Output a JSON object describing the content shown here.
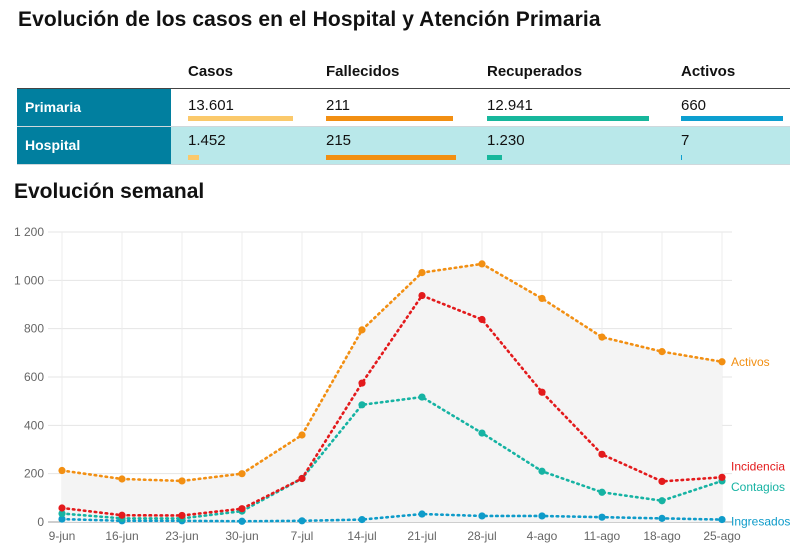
{
  "title": "Evolución de los casos en el Hospital y Atención Primaria",
  "table": {
    "headers": [
      "Casos",
      "Fallecidos",
      "Recuperados",
      "Activos"
    ],
    "rows": [
      {
        "label": "Primaria",
        "values": [
          "13.601",
          "211",
          "12.941",
          "660"
        ],
        "fill": [
          1.0,
          0.98,
          1.0,
          1.0
        ]
      },
      {
        "label": "Hospital",
        "values": [
          "1.452",
          "215",
          "1.230",
          "7"
        ],
        "fill": [
          0.107,
          1.0,
          0.095,
          0.011
        ]
      }
    ],
    "bar_colors": [
      "#fbc96b",
      "#f28f12",
      "#17b79c",
      "#0d9fd0"
    ]
  },
  "chart_data": {
    "type": "line",
    "title": "Evolución semanal",
    "categories": [
      "9-jun",
      "16-jun",
      "23-jun",
      "30-jun",
      "7-jul",
      "14-jul",
      "21-jul",
      "28-jul",
      "4-ago",
      "11-ago",
      "18-ago",
      "25-ago"
    ],
    "ylim": [
      0,
      1200
    ],
    "yticks": [
      0,
      200,
      400,
      600,
      800,
      1000,
      1200
    ],
    "ytick_labels": [
      "0",
      "200",
      "400",
      "600",
      "800",
      "1 000",
      "1 200"
    ],
    "grid": true,
    "line_style": "dotted",
    "series": [
      {
        "name": "Activos",
        "color": "#f28f12",
        "values": [
          213,
          178,
          170,
          200,
          360,
          795,
          1032,
          1068,
          925,
          765,
          705,
          663
        ]
      },
      {
        "name": "Incidencia",
        "color": "#e31a1c",
        "values": [
          58,
          28,
          27,
          55,
          180,
          575,
          937,
          838,
          537,
          280,
          168,
          185
        ]
      },
      {
        "name": "Contagios",
        "color": "#16b3a3",
        "values": [
          35,
          15,
          15,
          45,
          180,
          485,
          517,
          368,
          210,
          123,
          88,
          170
        ]
      },
      {
        "name": "Ingresados",
        "color": "#0e9bc9",
        "values": [
          12,
          5,
          5,
          3,
          5,
          10,
          33,
          25,
          25,
          20,
          15,
          10
        ]
      }
    ]
  }
}
